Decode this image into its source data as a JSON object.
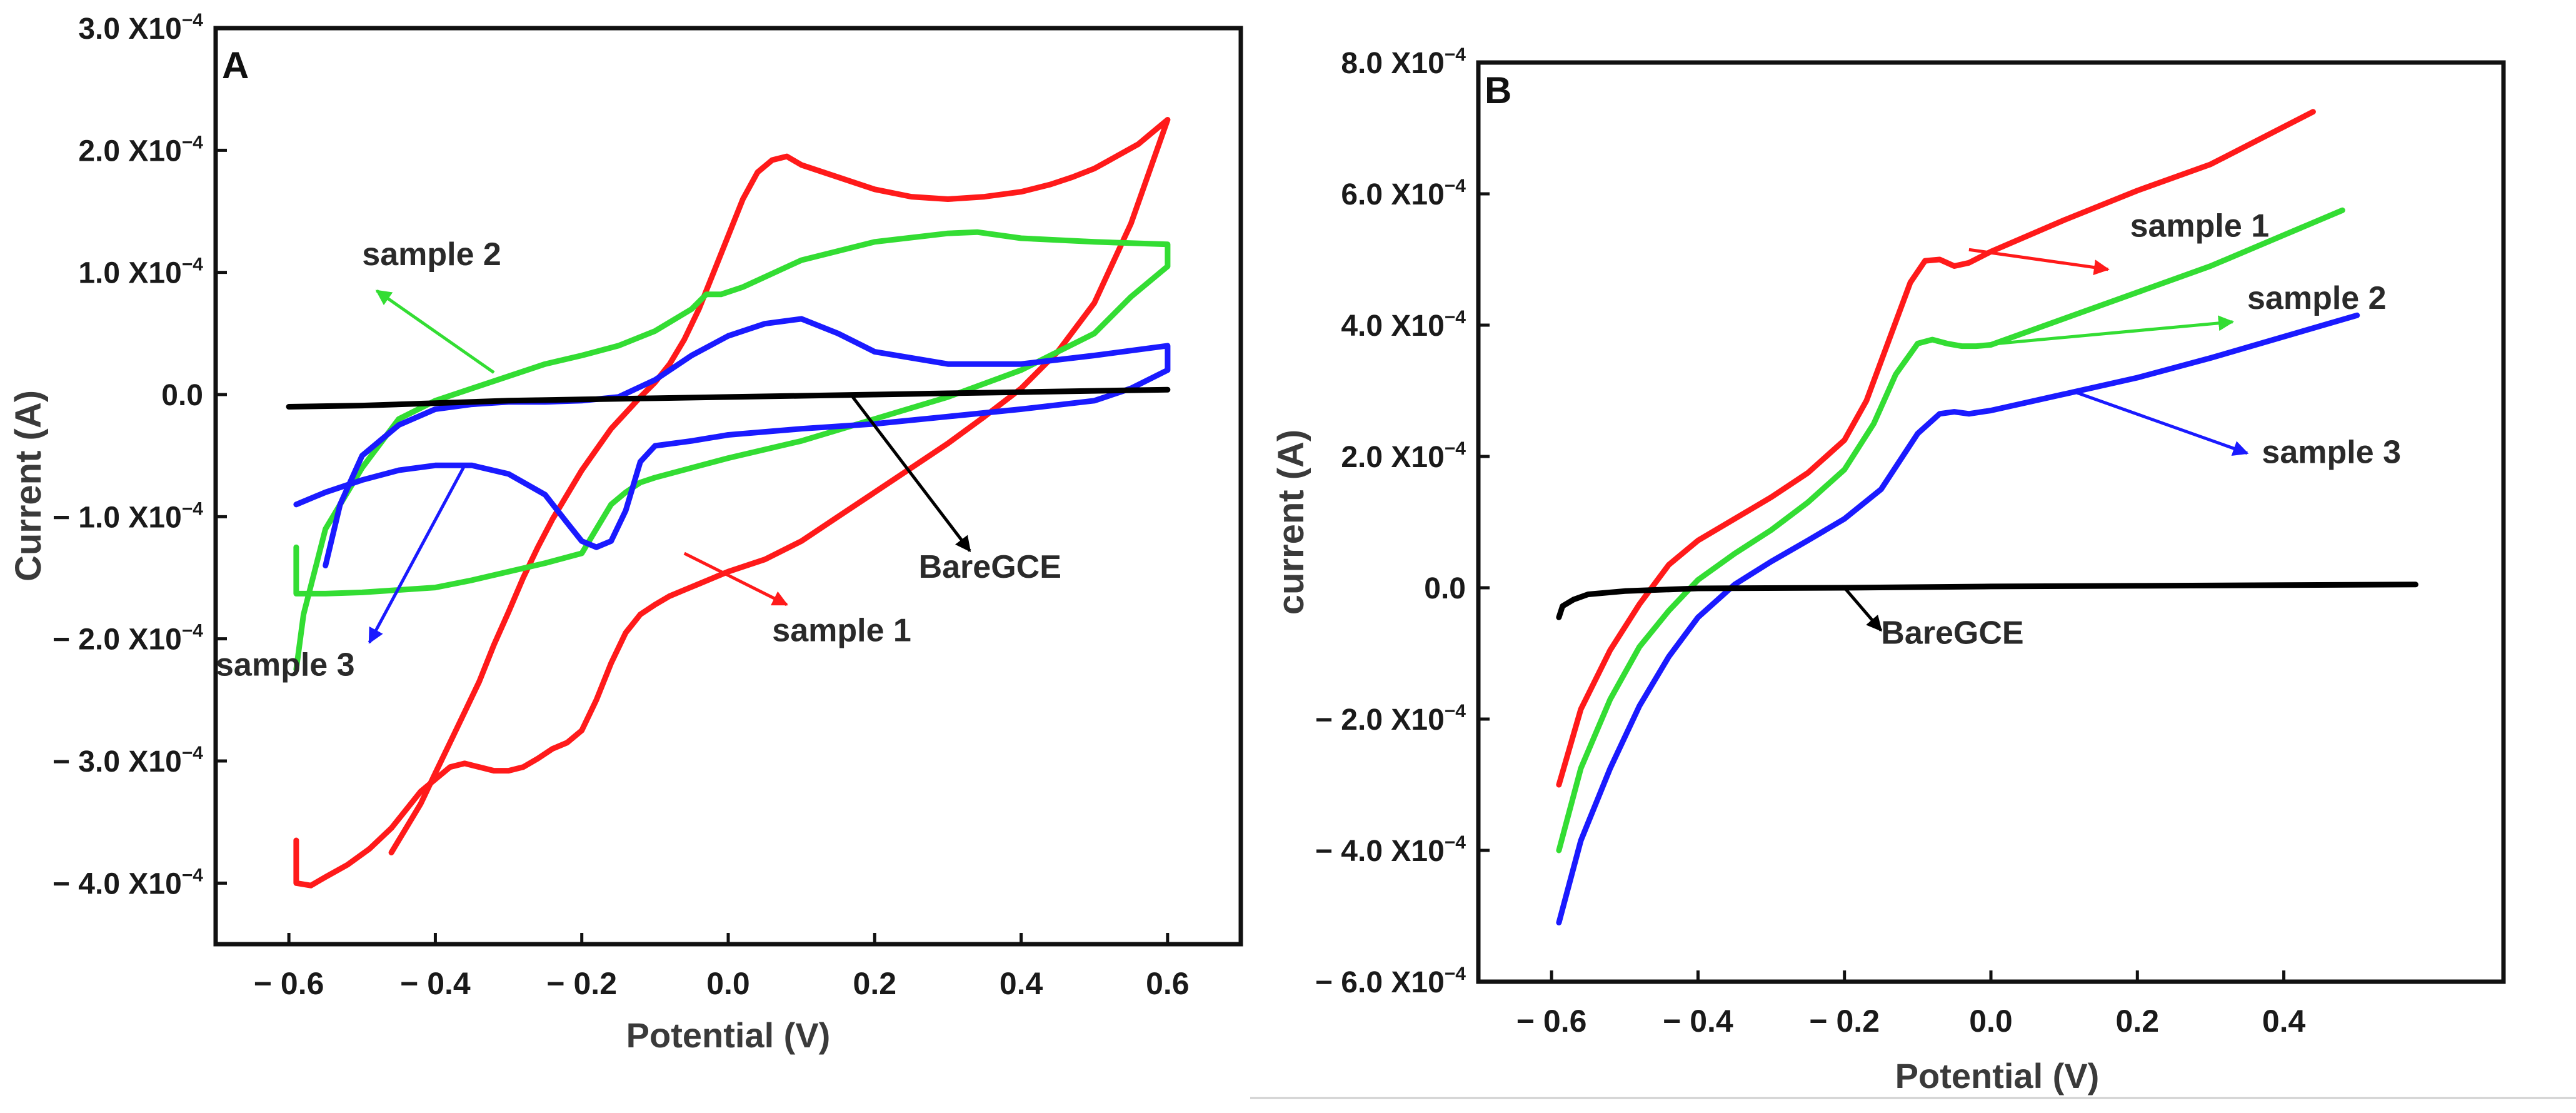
{
  "chart_data": [
    {
      "type": "line",
      "panel_label": "A",
      "xlabel": "Potential (V)",
      "ylabel": "Current (A)",
      "xlim": [
        -0.7,
        0.7
      ],
      "ylim": [
        -4.5,
        3.0
      ],
      "y_unit_exponent": "−4",
      "x_ticks": [
        {
          "value": -0.6,
          "label": "− 0.6"
        },
        {
          "value": -0.4,
          "label": "− 0.4"
        },
        {
          "value": -0.2,
          "label": "− 0.2"
        },
        {
          "value": 0.0,
          "label": "0.0"
        },
        {
          "value": 0.2,
          "label": "0.2"
        },
        {
          "value": 0.4,
          "label": "0.4"
        },
        {
          "value": 0.6,
          "label": "0.6"
        }
      ],
      "y_ticks": [
        {
          "value": 3.0,
          "label": "3.0 X10",
          "exp": "−4"
        },
        {
          "value": 2.0,
          "label": "2.0 X10",
          "exp": "−4"
        },
        {
          "value": 1.0,
          "label": "1.0 X10",
          "exp": "−4"
        },
        {
          "value": 0.0,
          "label": "0.0",
          "exp": ""
        },
        {
          "value": -1.0,
          "label": "− 1.0 X10",
          "exp": "−4"
        },
        {
          "value": -2.0,
          "label": "− 2.0 X10",
          "exp": "−4"
        },
        {
          "value": -3.0,
          "label": "− 3.0 X10",
          "exp": "−4"
        },
        {
          "value": -4.0,
          "label": "− 4.0 X10",
          "exp": "−4"
        }
      ],
      "series": [
        {
          "name": "sample 1",
          "color": "#ff1a1a",
          "x": [
            -0.59,
            -0.59,
            -0.57,
            -0.55,
            -0.52,
            -0.49,
            -0.46,
            -0.44,
            -0.42,
            -0.4,
            -0.38,
            -0.36,
            -0.34,
            -0.32,
            -0.3,
            -0.28,
            -0.26,
            -0.24,
            -0.22,
            -0.2,
            -0.18,
            -0.16,
            -0.14,
            -0.12,
            -0.1,
            -0.08,
            -0.06,
            -0.04,
            -0.02,
            0.0,
            0.05,
            0.1,
            0.15,
            0.2,
            0.25,
            0.3,
            0.35,
            0.4,
            0.45,
            0.5,
            0.55,
            0.6,
            0.6,
            0.58,
            0.56,
            0.53,
            0.5,
            0.47,
            0.44,
            0.4,
            0.35,
            0.3,
            0.25,
            0.2,
            0.15,
            0.1,
            0.08,
            0.06,
            0.04,
            0.02,
            0.0,
            -0.02,
            -0.04,
            -0.06,
            -0.08,
            -0.1,
            -0.12,
            -0.14,
            -0.16,
            -0.18,
            -0.2,
            -0.22,
            -0.24,
            -0.26,
            -0.28,
            -0.3,
            -0.32,
            -0.34,
            -0.36,
            -0.38,
            -0.4,
            -0.42,
            -0.44,
            -0.46
          ],
          "y": [
            -3.65,
            -4.0,
            -4.02,
            -3.95,
            -3.85,
            -3.72,
            -3.55,
            -3.4,
            -3.25,
            -3.15,
            -3.05,
            -3.02,
            -3.05,
            -3.08,
            -3.08,
            -3.05,
            -2.98,
            -2.9,
            -2.85,
            -2.75,
            -2.5,
            -2.2,
            -1.95,
            -1.8,
            -1.72,
            -1.65,
            -1.6,
            -1.55,
            -1.5,
            -1.45,
            -1.35,
            -1.2,
            -1.0,
            -0.8,
            -0.6,
            -0.4,
            -0.18,
            0.05,
            0.35,
            0.75,
            1.4,
            2.25,
            2.25,
            2.15,
            2.05,
            1.95,
            1.85,
            1.78,
            1.72,
            1.66,
            1.62,
            1.6,
            1.62,
            1.68,
            1.78,
            1.88,
            1.95,
            1.92,
            1.82,
            1.6,
            1.3,
            1.0,
            0.7,
            0.45,
            0.25,
            0.1,
            -0.02,
            -0.15,
            -0.28,
            -0.45,
            -0.62,
            -0.82,
            -1.02,
            -1.25,
            -1.5,
            -1.78,
            -2.05,
            -2.35,
            -2.6,
            -2.85,
            -3.1,
            -3.35,
            -3.55,
            -3.75
          ]
        },
        {
          "name": "sample 2",
          "color": "#33dd33",
          "x": [
            -0.59,
            -0.59,
            -0.55,
            -0.5,
            -0.45,
            -0.4,
            -0.35,
            -0.3,
            -0.25,
            -0.2,
            -0.18,
            -0.16,
            -0.14,
            -0.12,
            -0.1,
            -0.05,
            0.0,
            0.1,
            0.2,
            0.3,
            0.4,
            0.5,
            0.55,
            0.6,
            0.6,
            0.5,
            0.4,
            0.34,
            0.3,
            0.2,
            0.1,
            0.02,
            -0.01,
            -0.03,
            -0.05,
            -0.1,
            -0.15,
            -0.2,
            -0.25,
            -0.3,
            -0.35,
            -0.4,
            -0.45,
            -0.5,
            -0.55,
            -0.58,
            -0.59
          ],
          "y": [
            -1.25,
            -1.63,
            -1.63,
            -1.62,
            -1.6,
            -1.58,
            -1.52,
            -1.45,
            -1.38,
            -1.3,
            -1.1,
            -0.9,
            -0.8,
            -0.72,
            -0.68,
            -0.6,
            -0.52,
            -0.38,
            -0.2,
            -0.02,
            0.2,
            0.5,
            0.8,
            1.05,
            1.23,
            1.25,
            1.28,
            1.33,
            1.32,
            1.25,
            1.1,
            0.88,
            0.82,
            0.82,
            0.7,
            0.52,
            0.4,
            0.32,
            0.25,
            0.15,
            0.05,
            -0.05,
            -0.2,
            -0.6,
            -1.1,
            -1.8,
            -2.25
          ]
        },
        {
          "name": "sample 3",
          "color": "#1a1aff",
          "x": [
            -0.59,
            -0.55,
            -0.5,
            -0.45,
            -0.4,
            -0.35,
            -0.3,
            -0.25,
            -0.22,
            -0.2,
            -0.18,
            -0.16,
            -0.14,
            -0.12,
            -0.1,
            -0.05,
            0.0,
            0.1,
            0.2,
            0.3,
            0.4,
            0.5,
            0.55,
            0.6,
            0.6,
            0.5,
            0.4,
            0.3,
            0.2,
            0.15,
            0.1,
            0.05,
            0.0,
            -0.05,
            -0.1,
            -0.15,
            -0.2,
            -0.25,
            -0.3,
            -0.35,
            -0.4,
            -0.45,
            -0.5,
            -0.53,
            -0.55
          ],
          "y": [
            -0.9,
            -0.8,
            -0.7,
            -0.62,
            -0.58,
            -0.58,
            -0.65,
            -0.82,
            -1.05,
            -1.2,
            -1.25,
            -1.2,
            -0.95,
            -0.55,
            -0.42,
            -0.38,
            -0.33,
            -0.28,
            -0.24,
            -0.18,
            -0.12,
            -0.05,
            0.05,
            0.2,
            0.4,
            0.32,
            0.25,
            0.25,
            0.35,
            0.5,
            0.62,
            0.58,
            0.48,
            0.32,
            0.12,
            -0.02,
            -0.05,
            -0.06,
            -0.06,
            -0.08,
            -0.12,
            -0.25,
            -0.5,
            -0.9,
            -1.4
          ]
        },
        {
          "name": "BareGCE",
          "color": "#000000",
          "x": [
            -0.6,
            -0.5,
            -0.4,
            -0.3,
            -0.2,
            -0.1,
            0.0,
            0.1,
            0.2,
            0.3,
            0.4,
            0.5,
            0.6
          ],
          "y": [
            -0.1,
            -0.09,
            -0.07,
            -0.05,
            -0.04,
            -0.03,
            -0.02,
            -0.01,
            0.0,
            0.01,
            0.02,
            0.03,
            0.04
          ]
        }
      ],
      "annotations": [
        {
          "text": "sample 2",
          "series": "sample 2",
          "text_x": -0.5,
          "text_y": 1.06,
          "arrow_from": [
            -0.32,
            0.18
          ],
          "arrow_to": [
            -0.48,
            0.85
          ]
        },
        {
          "text": "sample 3",
          "series": "sample 3",
          "text_x": -0.7,
          "text_y": -2.3,
          "arrow_from": [
            -0.36,
            -0.58
          ],
          "arrow_to": [
            -0.49,
            -2.03
          ]
        },
        {
          "text": "sample 1",
          "series": "sample 1",
          "text_x": 0.06,
          "text_y": -2.02,
          "arrow_from": [
            -0.06,
            -1.3
          ],
          "arrow_to": [
            0.08,
            -1.72
          ]
        },
        {
          "text": "BareGCE",
          "series": "BareGCE",
          "text_x": 0.26,
          "text_y": -1.5,
          "arrow_from": [
            0.17,
            -0.02
          ],
          "arrow_to": [
            0.33,
            -1.28
          ]
        }
      ]
    },
    {
      "type": "line",
      "panel_label": "B",
      "xlabel": "Potential (V)",
      "ylabel": "current (A)",
      "xlim": [
        -0.7,
        0.7
      ],
      "ylim": [
        -6.0,
        8.0
      ],
      "y_unit_exponent": "−4",
      "x_ticks": [
        {
          "value": -0.6,
          "label": "− 0.6"
        },
        {
          "value": -0.4,
          "label": "− 0.4"
        },
        {
          "value": -0.2,
          "label": "− 0.2"
        },
        {
          "value": 0.0,
          "label": "0.0"
        },
        {
          "value": 0.2,
          "label": "0.2"
        },
        {
          "value": 0.4,
          "label": "0.4"
        }
      ],
      "y_ticks": [
        {
          "value": 8.0,
          "label": "8.0 X10",
          "exp": "−4"
        },
        {
          "value": 6.0,
          "label": "6.0 X10",
          "exp": "−4"
        },
        {
          "value": 4.0,
          "label": "4.0 X10",
          "exp": "−4"
        },
        {
          "value": 2.0,
          "label": "2.0 X10",
          "exp": "−4"
        },
        {
          "value": 0.0,
          "label": "0.0",
          "exp": ""
        },
        {
          "value": -2.0,
          "label": "− 2.0 X10",
          "exp": "−4"
        },
        {
          "value": -4.0,
          "label": "− 4.0 X10",
          "exp": "−4"
        },
        {
          "value": -6.0,
          "label": "− 6.0 X10",
          "exp": "−4"
        }
      ],
      "series": [
        {
          "name": "sample 1",
          "color": "#ff1a1a",
          "x": [
            -0.59,
            -0.56,
            -0.52,
            -0.48,
            -0.44,
            -0.4,
            -0.35,
            -0.3,
            -0.25,
            -0.2,
            -0.17,
            -0.14,
            -0.11,
            -0.09,
            -0.07,
            -0.05,
            -0.03,
            0.0,
            0.1,
            0.2,
            0.3,
            0.44
          ],
          "y": [
            -3.0,
            -1.85,
            -0.95,
            -0.25,
            0.35,
            0.72,
            1.05,
            1.38,
            1.75,
            2.25,
            2.85,
            3.75,
            4.65,
            4.98,
            5.0,
            4.9,
            4.95,
            5.12,
            5.6,
            6.05,
            6.45,
            7.25
          ]
        },
        {
          "name": "sample 2",
          "color": "#33dd33",
          "x": [
            -0.59,
            -0.56,
            -0.52,
            -0.48,
            -0.44,
            -0.4,
            -0.35,
            -0.3,
            -0.25,
            -0.2,
            -0.16,
            -0.13,
            -0.1,
            -0.08,
            -0.06,
            -0.04,
            -0.02,
            0.0,
            0.1,
            0.2,
            0.3,
            0.48
          ],
          "y": [
            -4.0,
            -2.75,
            -1.7,
            -0.9,
            -0.35,
            0.12,
            0.52,
            0.88,
            1.3,
            1.8,
            2.5,
            3.25,
            3.72,
            3.78,
            3.72,
            3.68,
            3.68,
            3.7,
            4.1,
            4.5,
            4.9,
            5.75
          ]
        },
        {
          "name": "sample 3",
          "color": "#1a1aff",
          "x": [
            -0.59,
            -0.56,
            -0.52,
            -0.48,
            -0.44,
            -0.4,
            -0.35,
            -0.3,
            -0.25,
            -0.2,
            -0.15,
            -0.1,
            -0.07,
            -0.05,
            -0.03,
            0.0,
            0.1,
            0.2,
            0.3,
            0.5
          ],
          "y": [
            -5.1,
            -3.85,
            -2.75,
            -1.8,
            -1.05,
            -0.45,
            0.05,
            0.4,
            0.72,
            1.05,
            1.5,
            2.35,
            2.65,
            2.68,
            2.65,
            2.7,
            2.95,
            3.2,
            3.5,
            4.15
          ]
        },
        {
          "name": "BareGCE",
          "color": "#000000",
          "x": [
            -0.59,
            -0.585,
            -0.57,
            -0.55,
            -0.5,
            -0.4,
            -0.2,
            0.0,
            0.2,
            0.4,
            0.58
          ],
          "y": [
            -0.45,
            -0.28,
            -0.18,
            -0.1,
            -0.05,
            -0.01,
            0.0,
            0.02,
            0.03,
            0.04,
            0.05
          ]
        }
      ],
      "annotations": [
        {
          "text": "sample 1",
          "series": "sample 1",
          "text_x": 0.19,
          "text_y": 5.35,
          "arrow_from": [
            -0.03,
            5.15
          ],
          "arrow_to": [
            0.16,
            4.85
          ]
        },
        {
          "text": "sample 2",
          "series": "sample 2",
          "text_x": 0.35,
          "text_y": 4.25,
          "arrow_from": [
            -0.01,
            3.7
          ],
          "arrow_to": [
            0.33,
            4.05
          ]
        },
        {
          "text": "sample 3",
          "series": "sample 3",
          "text_x": 0.37,
          "text_y": 1.9,
          "arrow_from": [
            0.11,
            3.0
          ],
          "arrow_to": [
            0.35,
            2.05
          ]
        },
        {
          "text": "BareGCE",
          "series": "BareGCE",
          "text_x": -0.15,
          "text_y": -0.85,
          "arrow_from": [
            -0.2,
            0.0
          ],
          "arrow_to": [
            -0.15,
            -0.65
          ]
        }
      ]
    }
  ]
}
